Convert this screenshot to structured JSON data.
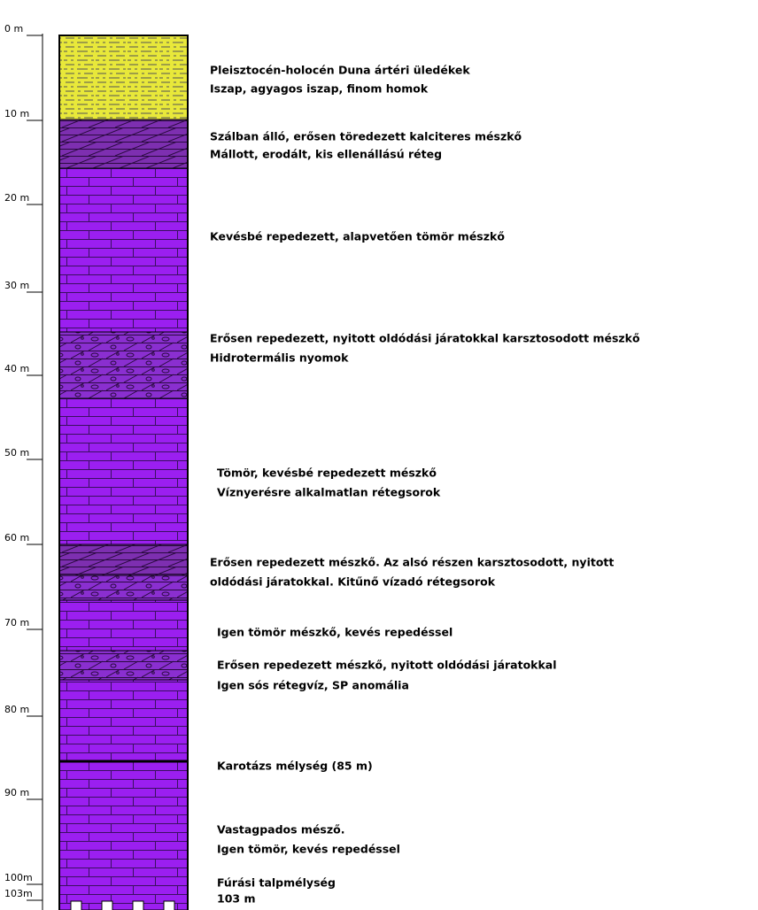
{
  "depth_labels": [
    "0 m",
    "10 m",
    "20 m",
    "30 m",
    "40 m",
    "50 m",
    "60 m",
    "70 m",
    "80 m",
    "90 m",
    "100m",
    "103m"
  ],
  "descriptions": [
    {
      "lines": [
        "Pleisztocén-holocén Duna ártéri üledékek",
        "Iszap, agyagos iszap, finom homok"
      ]
    },
    {
      "lines": [
        "Szálban álló, erősen töredezett kalciteres mészkő",
        "Mállott, erodált, kis ellenállású réteg"
      ]
    },
    {
      "lines": [
        "Kevésbé repedezett, alapvetően tömör mészkő"
      ]
    },
    {
      "lines": [
        "Erősen repedezett, nyitott oldódási járatokkal karsztosodott mészkő",
        "Hidrotermális nyomok"
      ]
    },
    {
      "lines": [
        "Tömör, kevésbé repedezett mészkő",
        "Víznyerésre alkalmatlan rétegsorok"
      ]
    },
    {
      "lines": [
        "Erősen repedezett mészkő. Az alsó részen karsztosodott, nyitott",
        "oldódási járatokkal. Kitűnő vízadó rétegsorok"
      ]
    },
    {
      "lines": [
        "Igen tömör mészkő, kevés repedéssel"
      ]
    },
    {
      "lines": [
        "Erősen repedezett mészkő, nyitott oldódási járatokkal",
        "Igen sós rétegvíz, SP anomália"
      ]
    },
    {
      "lines": [
        "Karotázs mélység (85 m)"
      ]
    },
    {
      "lines": [
        "Vastagpados mésző.",
        "Igen tömör, kevés repedéssel"
      ]
    },
    {
      "lines": [
        "Fúrási talpmélység",
        "103 m"
      ]
    }
  ]
}
